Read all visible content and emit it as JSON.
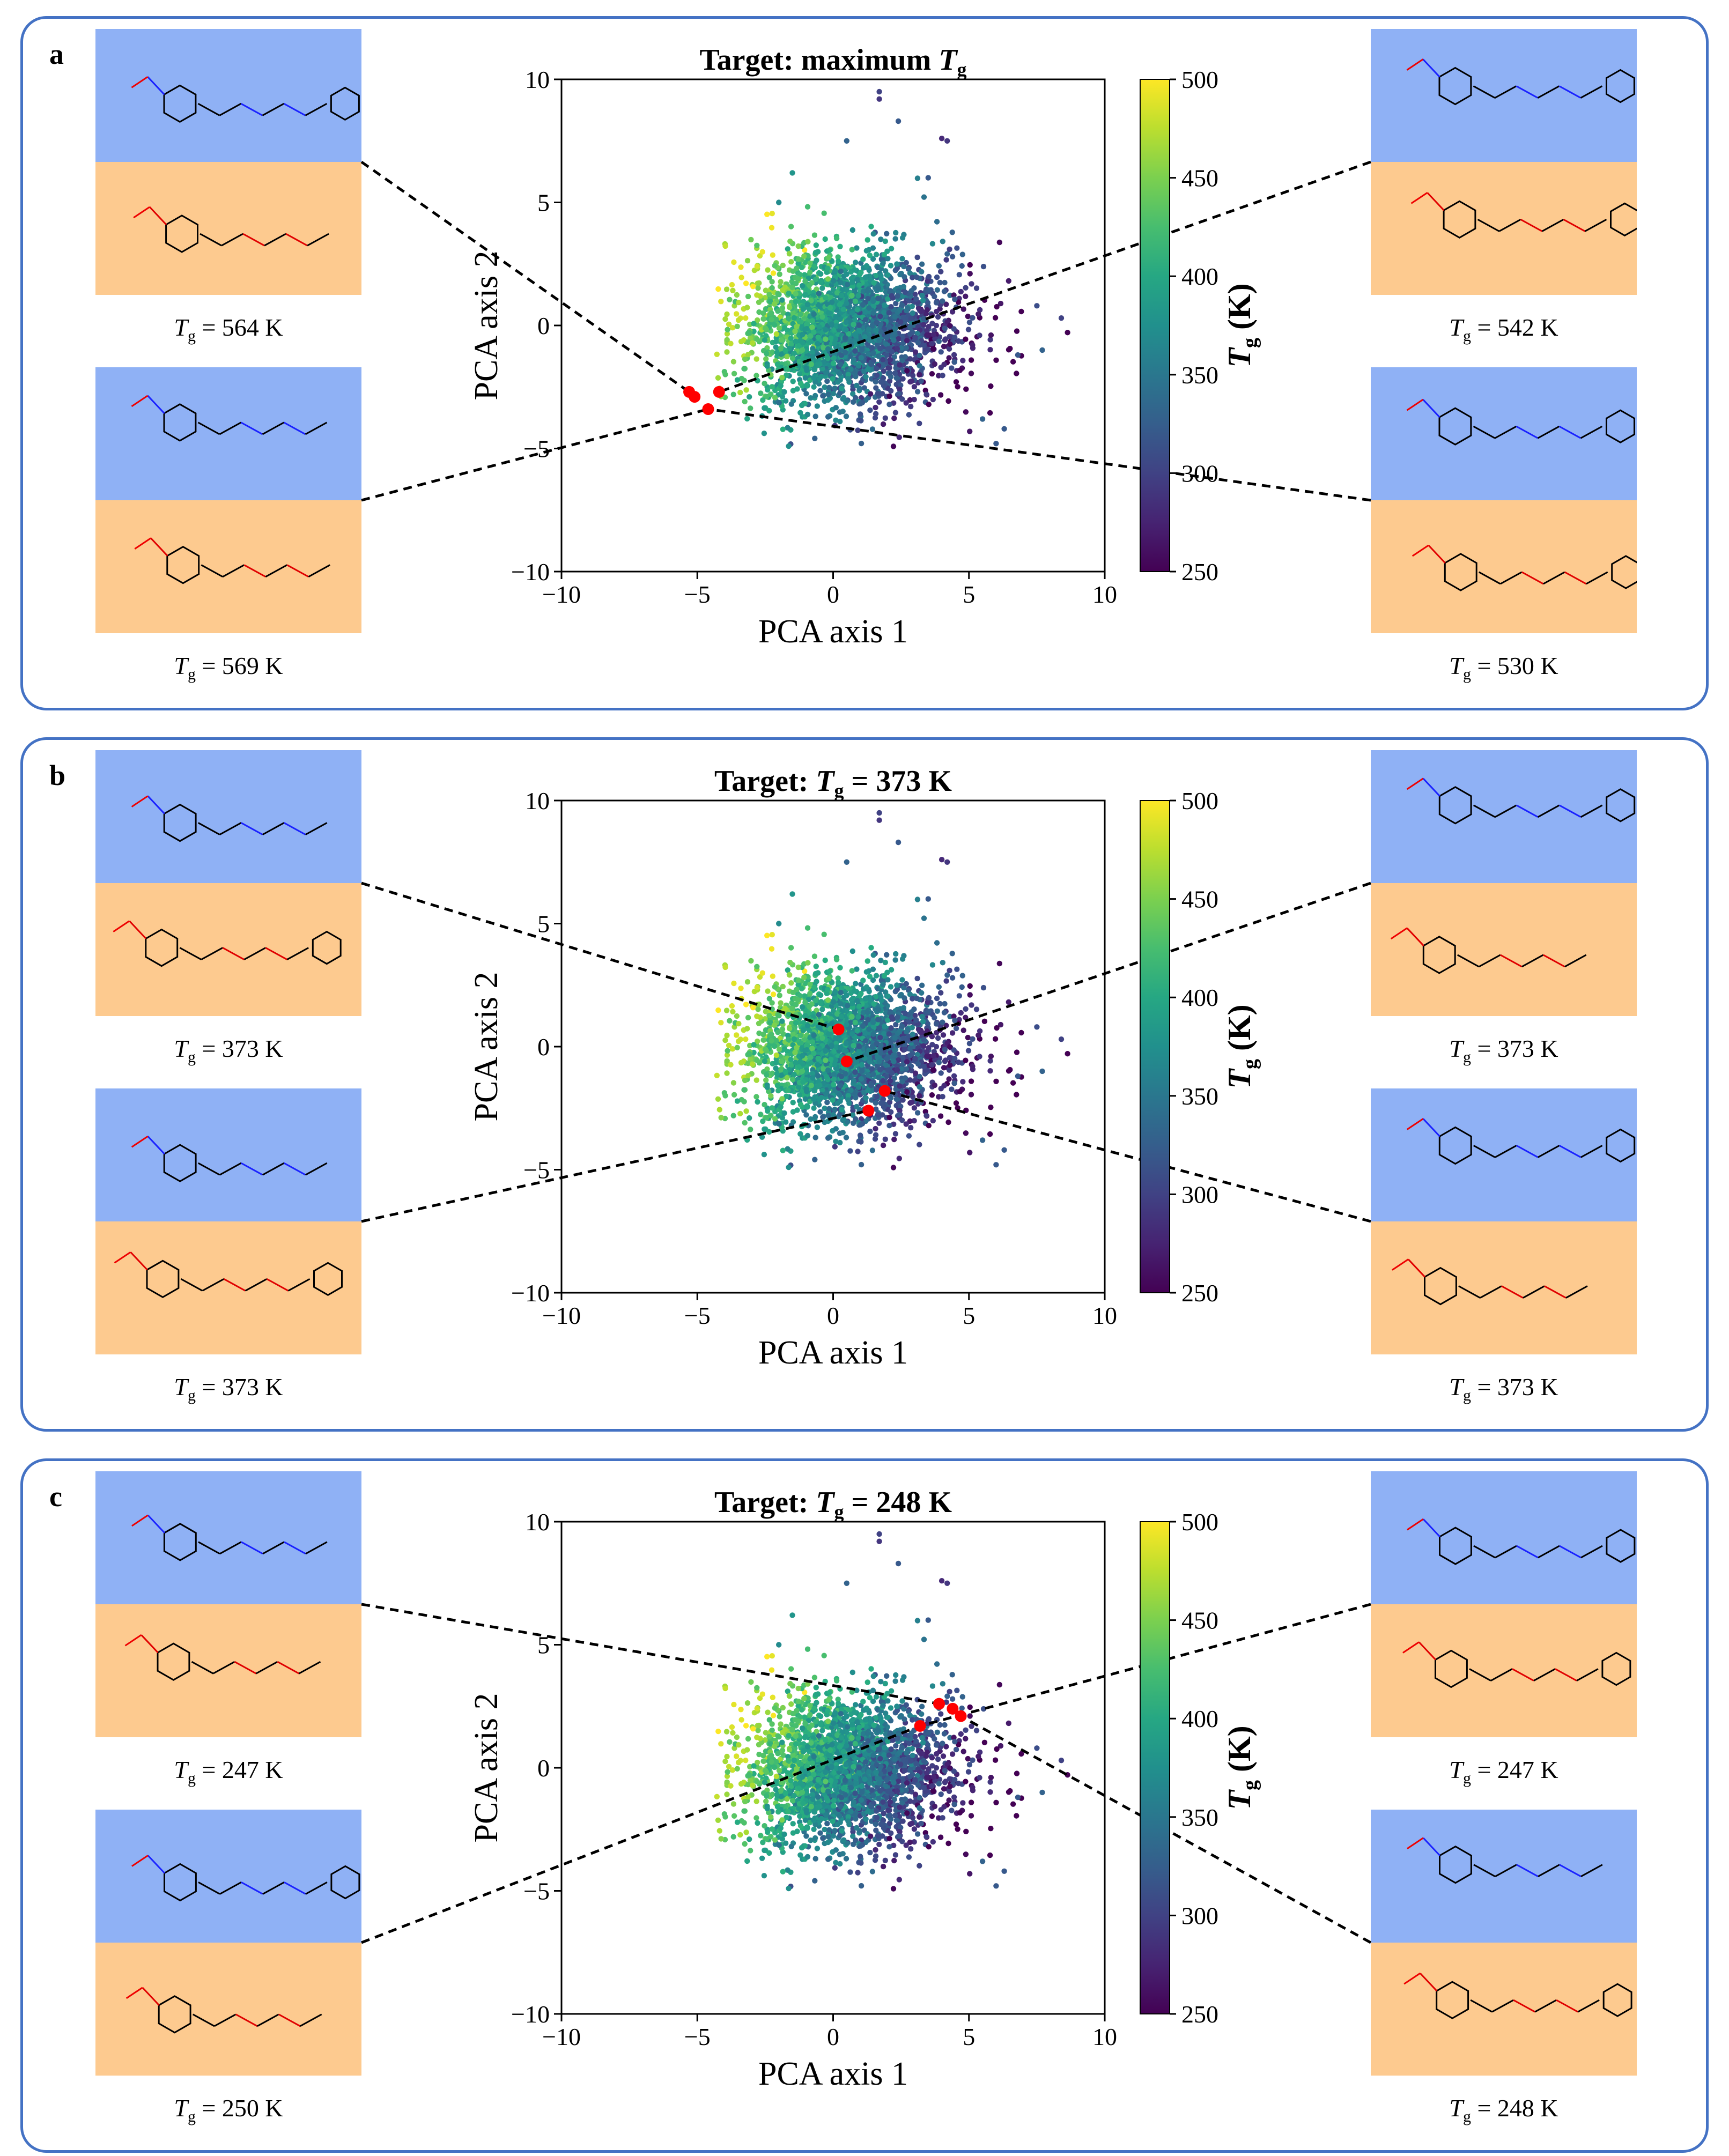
{
  "colorbar": {
    "label": "Tg (K)",
    "ticks": [
      250,
      300,
      350,
      400,
      450,
      500
    ],
    "min": 250,
    "max": 500
  },
  "panels": [
    {
      "label": "a",
      "chart_data": {
        "type": "scatter",
        "title": "Target: maximum Tg",
        "xlabel": "PCA axis 1",
        "ylabel": "PCA axis 2",
        "xlim": [
          -10,
          10
        ],
        "ylim": [
          -10,
          10
        ],
        "xticks": [
          -10,
          -5,
          0,
          5,
          10
        ],
        "yticks": [
          -10,
          -5,
          0,
          5,
          10
        ],
        "highlighted_points": [
          {
            "x": -5.3,
            "y": -2.7
          },
          {
            "x": -5.1,
            "y": -2.9
          },
          {
            "x": -4.2,
            "y": -2.7
          },
          {
            "x": -4.6,
            "y": -3.4
          }
        ]
      },
      "molecules": [
        {
          "tg_value": "564 K",
          "side": "left",
          "slot": 0,
          "point": 0
        },
        {
          "tg_value": "569 K",
          "side": "left",
          "slot": 1,
          "point": 3
        },
        {
          "tg_value": "542 K",
          "side": "right",
          "slot": 0,
          "point": 2
        },
        {
          "tg_value": "530 K",
          "side": "right",
          "slot": 1,
          "point": 3
        }
      ]
    },
    {
      "label": "b",
      "chart_data": {
        "type": "scatter",
        "title": "Target: Tg = 373 K",
        "xlabel": "PCA axis 1",
        "ylabel": "PCA axis 2",
        "xlim": [
          -10,
          10
        ],
        "ylim": [
          -10,
          10
        ],
        "xticks": [
          -10,
          -5,
          0,
          5,
          10
        ],
        "yticks": [
          -10,
          -5,
          0,
          5,
          10
        ],
        "highlighted_points": [
          {
            "x": 0.2,
            "y": 0.7
          },
          {
            "x": 0.5,
            "y": -0.6
          },
          {
            "x": 1.9,
            "y": -1.8
          },
          {
            "x": 1.3,
            "y": -2.6
          }
        ]
      },
      "molecules": [
        {
          "tg_value": "373 K",
          "side": "left",
          "slot": 0,
          "point": 0
        },
        {
          "tg_value": "373 K",
          "side": "left",
          "slot": 1,
          "point": 3
        },
        {
          "tg_value": "373 K",
          "side": "right",
          "slot": 0,
          "point": 1
        },
        {
          "tg_value": "373 K",
          "side": "right",
          "slot": 1,
          "point": 2
        }
      ]
    },
    {
      "label": "c",
      "chart_data": {
        "type": "scatter",
        "title": "Target: Tg = 248 K",
        "xlabel": "PCA axis 1",
        "ylabel": "PCA axis 2",
        "xlim": [
          -10,
          10
        ],
        "ylim": [
          -10,
          10
        ],
        "xticks": [
          -10,
          -5,
          0,
          5,
          10
        ],
        "yticks": [
          -10,
          -5,
          0,
          5,
          10
        ],
        "highlighted_points": [
          {
            "x": 3.9,
            "y": 2.6
          },
          {
            "x": 4.4,
            "y": 2.4
          },
          {
            "x": 4.7,
            "y": 2.1
          },
          {
            "x": 3.2,
            "y": 1.7
          }
        ]
      },
      "molecules": [
        {
          "tg_value": "247 K",
          "side": "left",
          "slot": 0,
          "point": 0
        },
        {
          "tg_value": "250 K",
          "side": "left",
          "slot": 1,
          "point": 3
        },
        {
          "tg_value": "247 K",
          "side": "right",
          "slot": 0,
          "point": 3
        },
        {
          "tg_value": "248 K",
          "side": "right",
          "slot": 1,
          "point": 2
        }
      ]
    }
  ]
}
